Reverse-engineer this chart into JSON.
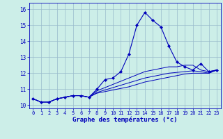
{
  "title": "",
  "xlabel": "Graphe des températures (°c)",
  "background_color": "#cceee8",
  "grid_color": "#99bbcc",
  "line_color": "#0000bb",
  "x_values": [
    0,
    1,
    2,
    3,
    4,
    5,
    6,
    7,
    8,
    9,
    10,
    11,
    12,
    13,
    14,
    15,
    16,
    17,
    18,
    19,
    20,
    21,
    22,
    23
  ],
  "y_main": [
    10.4,
    10.2,
    10.2,
    10.4,
    10.5,
    10.6,
    10.6,
    10.5,
    11.0,
    11.6,
    11.7,
    12.1,
    13.2,
    15.0,
    15.8,
    15.3,
    14.9,
    13.7,
    12.7,
    12.4,
    12.2,
    12.6,
    12.1,
    12.2
  ],
  "y_line2": [
    10.4,
    10.2,
    10.2,
    10.4,
    10.5,
    10.6,
    10.6,
    10.5,
    10.9,
    11.1,
    11.3,
    11.5,
    11.7,
    11.9,
    12.1,
    12.2,
    12.3,
    12.4,
    12.4,
    12.5,
    12.5,
    12.2,
    12.1,
    12.2
  ],
  "y_line3": [
    10.4,
    10.2,
    10.2,
    10.4,
    10.5,
    10.6,
    10.6,
    10.5,
    10.8,
    10.95,
    11.1,
    11.25,
    11.4,
    11.55,
    11.7,
    11.8,
    11.9,
    12.0,
    12.05,
    12.1,
    12.15,
    12.1,
    12.0,
    12.2
  ],
  "y_line4": [
    10.4,
    10.2,
    10.2,
    10.4,
    10.5,
    10.6,
    10.6,
    10.5,
    10.75,
    10.85,
    10.95,
    11.05,
    11.15,
    11.3,
    11.45,
    11.55,
    11.65,
    11.75,
    11.85,
    11.95,
    12.0,
    12.0,
    12.0,
    12.2
  ],
  "ylim": [
    9.8,
    16.4
  ],
  "yticks": [
    10,
    11,
    12,
    13,
    14,
    15,
    16
  ],
  "xlim": [
    -0.5,
    23.5
  ],
  "xticks": [
    0,
    1,
    2,
    3,
    4,
    5,
    6,
    7,
    8,
    9,
    10,
    11,
    12,
    13,
    14,
    15,
    16,
    17,
    18,
    19,
    20,
    21,
    22,
    23
  ]
}
